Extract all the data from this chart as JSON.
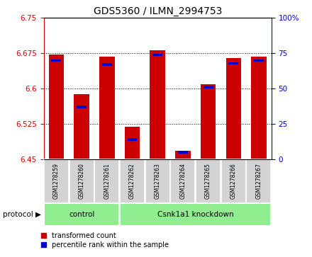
{
  "title": "GDS5360 / ILMN_2994753",
  "samples": [
    "GSM1278259",
    "GSM1278260",
    "GSM1278261",
    "GSM1278262",
    "GSM1278263",
    "GSM1278264",
    "GSM1278265",
    "GSM1278266",
    "GSM1278267"
  ],
  "transformed_count": [
    6.672,
    6.588,
    6.668,
    6.519,
    6.682,
    6.468,
    6.61,
    6.665,
    6.668
  ],
  "percentile_rank": [
    70,
    37,
    67,
    14,
    74,
    5,
    51,
    68,
    70
  ],
  "groups": [
    {
      "label": "control",
      "start": 0,
      "end": 3
    },
    {
      "label": "Csnk1a1 knockdown",
      "start": 3,
      "end": 9
    }
  ],
  "protocol_label": "protocol",
  "ylim_left": [
    6.45,
    6.75
  ],
  "ylim_right": [
    0,
    100
  ],
  "yticks_left": [
    6.45,
    6.525,
    6.6,
    6.675,
    6.75
  ],
  "yticks_right": [
    0,
    25,
    50,
    75,
    100
  ],
  "grid_values": [
    6.525,
    6.6,
    6.675
  ],
  "bar_color_red": "#CC0000",
  "bar_color_blue": "#0000CC",
  "group_bg_color": "#90EE90",
  "sample_bg_color": "#D3D3D3",
  "bar_width": 0.6,
  "legend_red_label": "transformed count",
  "legend_blue_label": "percentile rank within the sample",
  "title_fontsize": 10,
  "tick_fontsize": 7.5,
  "sample_fontsize": 5.5,
  "group_fontsize": 7.5,
  "legend_fontsize": 7,
  "protocol_fontsize": 7.5
}
